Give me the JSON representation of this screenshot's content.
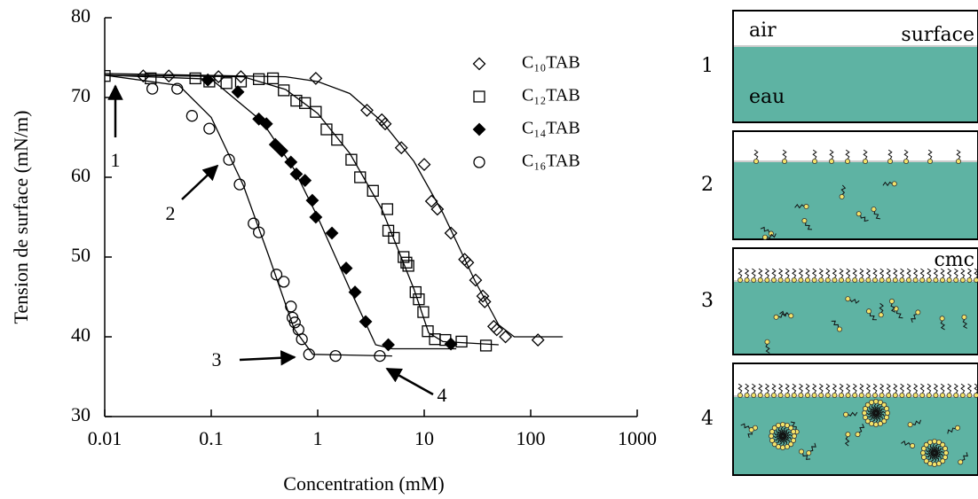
{
  "chart_data": {
    "type": "scatter",
    "xlabel": "Concentration (mM)",
    "ylabel": "Tension de surface (mN/m)",
    "xscale": "log",
    "xlim": [
      0.01,
      1000
    ],
    "ylim": [
      30,
      80
    ],
    "xticks": [
      0.01,
      0.1,
      1,
      10,
      100,
      1000
    ],
    "yticks": [
      30,
      40,
      50,
      60,
      70,
      80
    ],
    "legend": "upper right",
    "series": [
      {
        "name": "C₁₀TAB",
        "marker": "diamond",
        "filled": false,
        "color": "#000000",
        "x": [
          0.023,
          0.04,
          0.117,
          0.19,
          0.96,
          2.9,
          4.0,
          4.3,
          6.1,
          10,
          11.7,
          13.3,
          17.8,
          24,
          25.6,
          30.4,
          35.5,
          37,
          45,
          48,
          58,
          117
        ],
        "values": [
          72.7,
          72.7,
          72.6,
          72.6,
          72.4,
          68.4,
          67.2,
          66.7,
          63.7,
          61.6,
          57.0,
          56.0,
          53.0,
          49.7,
          49.3,
          47.1,
          45.1,
          44.4,
          41.3,
          40.9,
          40.0,
          39.6
        ],
        "fit": {
          "x": [
            0.01,
            0.5,
            1,
            2,
            4,
            8,
            15,
            30,
            50,
            70,
            200
          ],
          "values": [
            73,
            72.6,
            72,
            70.5,
            67,
            62,
            55.5,
            47,
            41.5,
            40,
            40
          ]
        }
      },
      {
        "name": "C₁₂TAB",
        "marker": "square",
        "filled": false,
        "color": "#000000",
        "x": [
          0.01,
          0.027,
          0.071,
          0.096,
          0.139,
          0.19,
          0.28,
          0.38,
          0.48,
          0.63,
          0.76,
          0.96,
          1.21,
          1.52,
          2.07,
          2.5,
          3.3,
          4.5,
          4.6,
          5.2,
          6.4,
          6.8,
          7.1,
          8.3,
          8.9,
          9.8,
          10.8,
          12.6,
          15.8,
          22.4,
          38
        ],
        "values": [
          72.7,
          72.4,
          72.4,
          72.0,
          71.8,
          72.0,
          72.3,
          72.4,
          70.9,
          69.6,
          69.3,
          68.2,
          66.0,
          64.7,
          62.2,
          60.0,
          58.3,
          56.0,
          53.3,
          52.4,
          50.0,
          49.3,
          48.9,
          45.6,
          44.7,
          43.1,
          40.7,
          39.7,
          39.6,
          39.4,
          38.9
        ],
        "fit": {
          "x": [
            0.01,
            0.2,
            0.5,
            1,
            2,
            4,
            8,
            11,
            15,
            50
          ],
          "values": [
            72.8,
            72.6,
            71,
            68,
            63,
            56,
            46,
            40.5,
            39.4,
            39
          ]
        }
      },
      {
        "name": "C₁₄TAB",
        "marker": "diamond",
        "filled": true,
        "color": "#000000",
        "x": [
          0.093,
          0.178,
          0.28,
          0.33,
          0.4,
          0.46,
          0.56,
          0.63,
          0.76,
          0.89,
          0.96,
          1.36,
          1.85,
          2.24,
          2.82,
          4.6,
          17.8
        ],
        "values": [
          72.2,
          70.7,
          67.3,
          66.7,
          64.1,
          63.3,
          61.9,
          60.4,
          59.6,
          57.1,
          55.0,
          53.0,
          48.6,
          45.6,
          41.9,
          39.0,
          39.1
        ],
        "fit": {
          "x": [
            0.01,
            0.1,
            0.3,
            0.6,
            1,
            2,
            3.5,
            5,
            20
          ],
          "values": [
            72.8,
            72.3,
            67,
            61,
            55,
            46,
            39,
            38.5,
            38.5
          ]
        }
      },
      {
        "name": "C₁₆TAB",
        "marker": "circle",
        "filled": false,
        "color": "#000000",
        "x": [
          0.028,
          0.048,
          0.066,
          0.096,
          0.147,
          0.185,
          0.25,
          0.28,
          0.41,
          0.48,
          0.56,
          0.58,
          0.61,
          0.66,
          0.71,
          0.83,
          1.47,
          3.83
        ],
        "values": [
          71.1,
          71.1,
          67.7,
          66.1,
          62.2,
          59.1,
          54.2,
          53.1,
          47.8,
          46.9,
          43.8,
          42.4,
          41.8,
          40.9,
          39.7,
          37.8,
          37.6,
          37.6
        ],
        "fit": {
          "x": [
            0.01,
            0.05,
            0.1,
            0.2,
            0.35,
            0.6,
            0.9,
            5
          ],
          "values": [
            72.8,
            71.5,
            67.5,
            59,
            50,
            41,
            37.8,
            37.6
          ]
        }
      }
    ],
    "annotations": [
      "1",
      "2",
      "3",
      "4"
    ]
  },
  "diagram": {
    "panels": [
      {
        "label": "1",
        "top_left": "air",
        "top_right": "surface",
        "body": "eau"
      },
      {
        "label": "2"
      },
      {
        "label": "3",
        "top_right": "cmc"
      },
      {
        "label": "4"
      }
    ]
  }
}
